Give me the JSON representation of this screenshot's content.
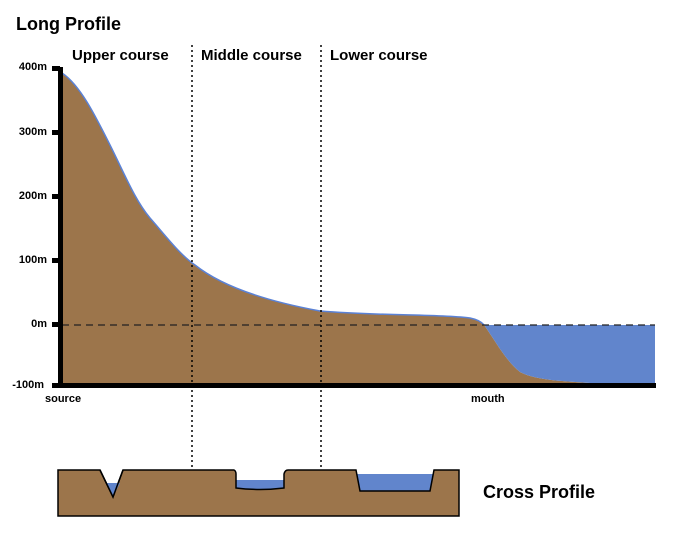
{
  "title": "Long Profile",
  "sections": [
    "Upper course",
    "Middle course",
    "Lower course"
  ],
  "y_ticks": [
    "400m",
    "300m",
    "200m",
    "100m",
    "0m",
    "-100m"
  ],
  "x_labels": {
    "start": "source",
    "end": "mouth"
  },
  "cross_title": "Cross Profile",
  "colors": {
    "land": "#9c754b",
    "water": "#6185cc",
    "outline": "#000000"
  }
}
